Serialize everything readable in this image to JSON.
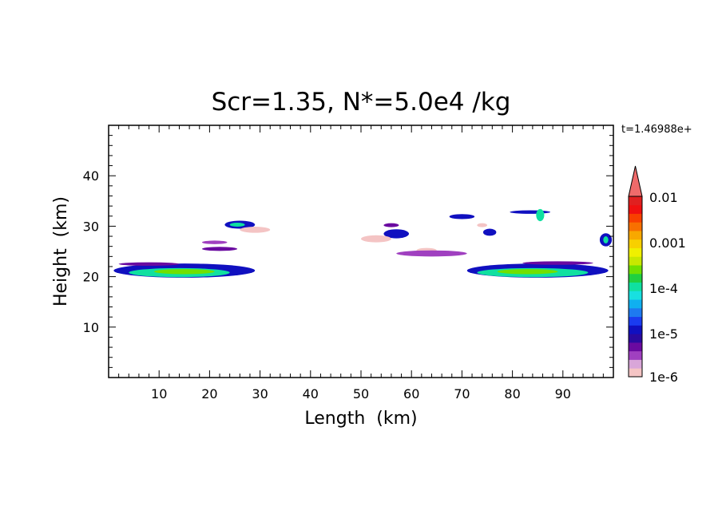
{
  "chart_data": {
    "type": "heatmap",
    "title": "Scr=1.35, N*=5.0e4 /kg",
    "timestamp": "t=1.46988e+",
    "xlabel": "Length  (km)",
    "ylabel": "Height  (km)",
    "xlim": [
      0,
      100
    ],
    "ylim": [
      0,
      50
    ],
    "x_ticks": [
      "10",
      "20",
      "30",
      "40",
      "50",
      "60",
      "70",
      "80",
      "90"
    ],
    "y_ticks": [
      "10",
      "20",
      "30",
      "40"
    ],
    "colorbar": {
      "scale": "log",
      "labels": [
        "0.01",
        "0.001",
        "1e-4",
        "1e-5",
        "1e-6"
      ],
      "colors": [
        "#f4c4c4",
        "#d9a6d9",
        "#a040c0",
        "#6a0aa0",
        "#2a0aa0",
        "#1010c0",
        "#1a3cf0",
        "#1e7af0",
        "#10b0f0",
        "#18e0e0",
        "#10e0a0",
        "#20d040",
        "#70e000",
        "#c8e800",
        "#f0f000",
        "#f8d000",
        "#f8a800",
        "#f87000",
        "#f84000",
        "#f01010",
        "#e02020"
      ],
      "extend_color": "#ef6a6a"
    },
    "regions": [
      {
        "cx": 15,
        "cy": 21.2,
        "rx": 14,
        "ry": 1.4,
        "level": 1e-05
      },
      {
        "cx": 14,
        "cy": 20.8,
        "rx": 10,
        "ry": 0.9,
        "level": 0.0001
      },
      {
        "cx": 15,
        "cy": 21.0,
        "rx": 6,
        "ry": 0.5,
        "level": 0.0003
      },
      {
        "cx": 8,
        "cy": 22.5,
        "rx": 6,
        "ry": 0.35,
        "level": 5e-06
      },
      {
        "cx": 85,
        "cy": 21.2,
        "rx": 14,
        "ry": 1.4,
        "level": 1e-05
      },
      {
        "cx": 84,
        "cy": 20.8,
        "rx": 11,
        "ry": 0.9,
        "level": 0.0001
      },
      {
        "cx": 83,
        "cy": 21.0,
        "rx": 6,
        "ry": 0.5,
        "level": 0.0003
      },
      {
        "cx": 89,
        "cy": 22.7,
        "rx": 7,
        "ry": 0.35,
        "level": 5e-06
      },
      {
        "cx": 26,
        "cy": 30.3,
        "rx": 3,
        "ry": 0.8,
        "level": 1e-05
      },
      {
        "cx": 25.5,
        "cy": 30.3,
        "rx": 1.5,
        "ry": 0.4,
        "level": 0.0001
      },
      {
        "cx": 29,
        "cy": 29.3,
        "rx": 3,
        "ry": 0.6,
        "level": 1e-06
      },
      {
        "cx": 21,
        "cy": 26.8,
        "rx": 2.5,
        "ry": 0.35,
        "level": 3e-06
      },
      {
        "cx": 22,
        "cy": 25.5,
        "rx": 3.5,
        "ry": 0.4,
        "level": 5e-06
      },
      {
        "cx": 57,
        "cy": 28.5,
        "rx": 2.5,
        "ry": 0.9,
        "level": 1e-05
      },
      {
        "cx": 56,
        "cy": 30.2,
        "rx": 1.5,
        "ry": 0.4,
        "level": 5e-06
      },
      {
        "cx": 53,
        "cy": 27.5,
        "rx": 3,
        "ry": 0.7,
        "level": 1e-06
      },
      {
        "cx": 63,
        "cy": 25.2,
        "rx": 2,
        "ry": 0.5,
        "level": 1e-06
      },
      {
        "cx": 64,
        "cy": 24.6,
        "rx": 7,
        "ry": 0.6,
        "level": 3e-06
      },
      {
        "cx": 70,
        "cy": 31.9,
        "rx": 2.5,
        "ry": 0.5,
        "level": 1e-05
      },
      {
        "cx": 75.5,
        "cy": 28.8,
        "rx": 1.3,
        "ry": 0.7,
        "level": 1e-05
      },
      {
        "cx": 74,
        "cy": 30.2,
        "rx": 1,
        "ry": 0.4,
        "level": 1e-06
      },
      {
        "cx": 83.5,
        "cy": 32.8,
        "rx": 4,
        "ry": 0.35,
        "level": 1e-05
      },
      {
        "cx": 85.5,
        "cy": 32.2,
        "rx": 0.8,
        "ry": 1.2,
        "level": 0.0001
      },
      {
        "cx": 98.5,
        "cy": 27.3,
        "rx": 1.2,
        "ry": 1.3,
        "level": 1e-05
      },
      {
        "cx": 98.5,
        "cy": 27.3,
        "rx": 0.5,
        "ry": 0.7,
        "level": 0.0001
      }
    ]
  }
}
